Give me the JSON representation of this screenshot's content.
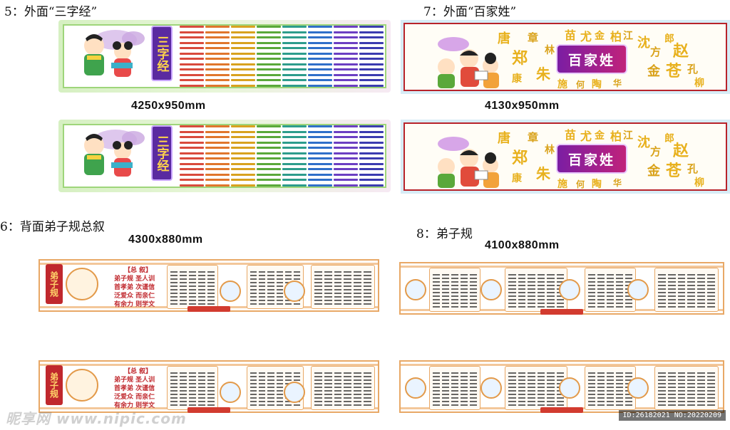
{
  "sections": {
    "s5": {
      "label": "5：外面“三字经”",
      "size": "4250x950mm",
      "panel_title": "三字经"
    },
    "s7": {
      "label": "7：外面“百家姓”",
      "size": "4130x950mm",
      "panel_title": "百家姓"
    },
    "s6": {
      "label": "6：背面弟子规总叙",
      "size": "4300x880mm",
      "emblem": "弟子规",
      "summary_head": "【总 叙】",
      "summary_lines": [
        "弟子规  圣人训",
        "首孝弟  次谨信",
        "泛爱众  而亲仁",
        "有余力  则学文"
      ]
    },
    "s8": {
      "label": "8：弟子规",
      "size": "4100x880mm"
    }
  },
  "watermark": "昵享网 www.nipic.com",
  "image_id": "ID:26182021 NO:20220209"
}
